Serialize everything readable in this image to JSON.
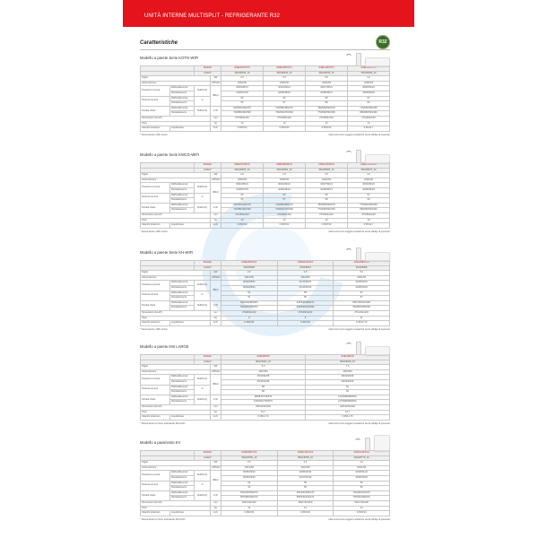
{
  "banner": {
    "title": "UNITÀ INTERNE MULTISPLIT - REFRIGERANTE R32",
    "color": "#e3141b"
  },
  "heading": "Caratteristiche",
  "badge": "R32",
  "row_labels": {
    "modello": "Modello",
    "codice": "Codice*",
    "taglia": "Taglia",
    "alimentazione": "Alimentazione",
    "pressione": "Pressione sonora",
    "potenza": "Potenza sonora",
    "portata": "Portata d'aria",
    "dimensioni": "Dimensioni (AxLxP)",
    "peso": "Peso",
    "attacchi": "Attacchi tubazioni",
    "raff": "Raffreddamento",
    "risc": "Riscaldamento",
    "liqgas": "Liquido/Gas"
  },
  "units": {
    "taglia": "kW",
    "alim": "V/Ph/Hz",
    "shhlq": "SH/H/L/Q",
    "h": "H",
    "dba": "dB(A)",
    "m3h": "m³/h",
    "mm": "mm",
    "kg": "kg",
    "inch": "inch"
  },
  "disclaimer": "I dati tecnici sono soggetti a variazioni senza obbligo di preavviso",
  "sections": [
    {
      "title": "Modello a parete Serie KOTG-WIFI",
      "floor": false,
      "models": [
        "ASEH07KOTG",
        "ASEH09KOTG",
        "ASEH12KOTG",
        "ASEH14KOTG"
      ],
      "codes": [
        "3NGF8235_10",
        "3NGF8240_10",
        "3NGF8245_10",
        "3NGF8250_10"
      ],
      "taglia": [
        "2.0",
        "2.5",
        "3.5",
        "4.2"
      ],
      "alim": [
        "230/1/50",
        "230/1/50",
        "230/1/50",
        "230/1/50"
      ],
      "ps_c": [
        "39/33/28/21",
        "40/34/29/21",
        "43/37/30/21",
        "45/39/33/24"
      ],
      "ps_h": [
        "41/35/27/22",
        "42/36/28/22",
        "42/38/30/27",
        "44/38/33/26"
      ],
      "pw_c": [
        "55",
        "55",
        "58",
        "57"
      ],
      "pw_h": [
        "55",
        "57",
        "58",
        "59"
      ],
      "pa_c": [
        "600/540/430/270",
        "700/580/480/270",
        "780/660/520/270",
        "770/690/460/290"
      ],
      "pa_h": [
        "720/580/490/330",
        "700/640/470/330",
        "770/690/530/330",
        "880/680/520/340"
      ],
      "dim": [
        "270x834x222",
        "270x834x222",
        "270x834x222",
        "270x834x222"
      ],
      "peso": [
        "10",
        "10",
        "10",
        "10"
      ],
      "att": [
        "6.35/9.52",
        "6.35/9.52",
        "6.35/9.52",
        "6.35/12.7"
      ],
      "note": "* Telecomando e WiFi inclusi"
    },
    {
      "title": "Modello a parete Serie KMCG-WIFI",
      "floor": false,
      "models": [
        "ASEH07KMCG",
        "ASEH09KMCG",
        "ASEH12KMCG",
        "ASEH14KMCG"
      ],
      "codes": [
        "3NGF8255_10",
        "3NGF8260_10",
        "3NGF8265_10",
        "3NGF8270_10"
      ],
      "taglia": [
        "2.0",
        "2.5",
        "3.5",
        "4.2"
      ],
      "alim": [
        "230/1/50",
        "230/1/50",
        "230/1/50",
        "230/1/50"
      ],
      "ps_c": [
        "39/33/28/21",
        "40/34/29/21",
        "43/37/30/21",
        "45/39/33/24"
      ],
      "ps_h": [
        "41/35/27/22",
        "42/36/28/22",
        "42/38/30/27",
        "44/38/33/26"
      ],
      "pw_c": [
        "55",
        "55",
        "58",
        "57"
      ],
      "pw_h": [
        "55",
        "57",
        "58",
        "59"
      ],
      "pa_c": [
        "600/540/430/270",
        "700/580/480/270",
        "780/660/520/270",
        "770/690/460/290"
      ],
      "pa_h": [
        "720/580/490/330",
        "700/640/470/330",
        "770/690/530/330",
        "880/680/520/340"
      ],
      "dim": [
        "270x834x222",
        "270x834x222",
        "270x834x222",
        "270x834x222"
      ],
      "peso": [
        "10",
        "10",
        "10",
        "10"
      ],
      "att": [
        "6.35/9.52",
        "6.35/9.52",
        "6.35/9.52",
        "6.35/12.7"
      ],
      "note": "* Telecomando e WiFi inclusi"
    },
    {
      "title": "Modello a parete Serie KH-WIFI",
      "floor": false,
      "models": [
        "ASEH09KHCA",
        "ASEH12KHCA",
        "ASEH18KHCA"
      ],
      "codes": [
        "3NGF8000",
        "3NGF8001",
        "3NGF8008"
      ],
      "taglia": [
        "2.6",
        "3.5",
        "5.0"
      ],
      "alim": [
        "230/1/50",
        "230/1/50",
        "230/1/50"
      ],
      "ps_c": [
        "36/32/28/21",
        "41/37/29/21",
        "42/38/33/21"
      ],
      "ps_h": [
        "39/33/28/22",
        "41/34/30/22",
        "43/38/33/22"
      ],
      "pw_c": [
        "51",
        "56",
        "57"
      ],
      "pw_h": [
        "51",
        "56",
        "57"
      ],
      "pa_c": [
        "530/460/380/250",
        "640/540/390/270",
        "850/720/610/290"
      ],
      "pa_h": [
        "530/460/380/250",
        "640/540/420/290",
        "950/800/650/290"
      ],
      "dim": [
        "270x834x222",
        "270x834x222",
        "270x914x232"
      ],
      "peso": [
        "9",
        "9",
        "11"
      ],
      "att": [
        "6.35/9.52",
        "6.35/9.52",
        "6.35/12.70"
      ],
      "note": "* Telecomando e WiFi inclusi"
    },
    {
      "title": "Modello a parete KW LARGE",
      "floor": false,
      "models": [
        "ASEH22KW",
        "ASEH24KW"
      ],
      "codes": [
        "3NGF8242_10",
        "3NGF8245_10"
      ],
      "taglia": [
        "6.0",
        "7.0"
      ],
      "alim": [
        "230/1/50",
        "230/1/50"
      ],
      "ps_c": [
        "46/40/33/28",
        "48/42/35/29"
      ],
      "ps_h": [
        "46/40/33/28",
        "48/42/35/29"
      ],
      "pw_c": [
        "58",
        "60"
      ],
      "pw_h": [
        "58",
        "60"
      ],
      "pa_c": [
        "980/870/740/570",
        "1170/980/800/610"
      ],
      "pa_h": [
        "1020/910/760/570",
        "1170/980/800/610"
      ],
      "dim": [
        "320x1150x246",
        "320x1150x246"
      ],
      "peso": [
        "13.7",
        "13.7"
      ],
      "att": [
        "6.35/12.70",
        "6.35/12.70"
      ],
      "note": "* Telecomando con timer settimanale INCLUSO"
    },
    {
      "title": "Modello a pavimento KV",
      "floor": true,
      "models": [
        "AGEG09KVCA",
        "AGEG12KVCA",
        "AGEG14KVCA"
      ],
      "codes": [
        "3NGF8760_10",
        "3NGF8765_10",
        "3NGF8770_10"
      ],
      "taglia": [
        "2.5",
        "3.5",
        "4.2"
      ],
      "alim": [
        "230/1/50",
        "230/1/50",
        "230/1/50"
      ],
      "ps_c": [
        "39/35/29/22",
        "42/36/30/22",
        "43/38/31/22"
      ],
      "ps_h": [
        "39/35/29/22",
        "42/37/31/22",
        "43/38/32/22"
      ],
      "pw_c": [
        "52",
        "55",
        "56"
      ],
      "pw_h": [
        "52",
        "55",
        "56"
      ],
      "pa_c": [
        "520/460/390/270",
        "600/490/390/270",
        "700/620/440/270"
      ],
      "pa_h": [
        "550/480/390/270",
        "650/540/440/270",
        "700/640/480/270"
      ],
      "dim": [
        "600x740x200",
        "600x740x200",
        "600x740x200"
      ],
      "peso": [
        "14",
        "14",
        "14"
      ],
      "att": [
        "6.35/9.52",
        "6.35/9.52",
        "6.35/9.52"
      ],
      "note": "* Telecomando con timer settimanale INCLUSO"
    }
  ]
}
